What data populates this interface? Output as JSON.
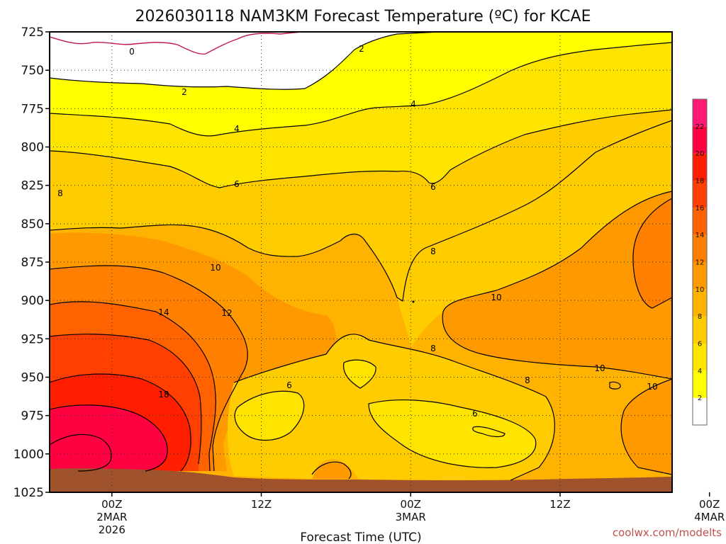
{
  "chart_data": {
    "type": "contour",
    "title": "2026030118 NAM3KM Forecast Temperature (ºC) for KCAE",
    "xlabel": "Forecast Time (UTC)",
    "ylabel": "",
    "credit": "coolwx.com/modelts",
    "y_levels": [
      "725",
      "750",
      "775",
      "800",
      "825",
      "850",
      "875",
      "900",
      "925",
      "950",
      "975",
      "1000",
      "1025"
    ],
    "y_range_hpa": [
      725,
      1025
    ],
    "x_range_forecast_hours": [
      -5,
      45
    ],
    "x_ticks": [
      {
        "hour": 0,
        "lines": [
          "00Z",
          "2MAR",
          "2026"
        ]
      },
      {
        "hour": 12,
        "lines": [
          "12Z"
        ]
      },
      {
        "hour": 24,
        "lines": [
          "00Z",
          "3MAR"
        ]
      },
      {
        "hour": 36,
        "lines": [
          "12Z"
        ]
      },
      {
        "hour": 48,
        "lines": [
          "00Z",
          "4MAR"
        ]
      }
    ],
    "colorbar": {
      "labels": [
        "2",
        "4",
        "6",
        "8",
        "10",
        "12",
        "14",
        "16",
        "18",
        "20",
        "22"
      ],
      "colors": [
        "#ffffff",
        "#ffff00",
        "#ffe400",
        "#ffcc00",
        "#ffb300",
        "#ff9900",
        "#ff7f00",
        "#ff6200",
        "#ff4000",
        "#ff1e00",
        "#ff0040",
        "#ff1a75"
      ]
    },
    "band_colors": {
      "lt0": "#ffffff",
      "b0_2": "#ffffff",
      "b2_4": "#ffff00",
      "b4_6": "#ffe400",
      "b6_8": "#ffcc00",
      "b8_10": "#ffb300",
      "b10_12": "#ff9900",
      "b12_14": "#ff7f00",
      "b14_16": "#ff6200",
      "b16_18": "#ff4000",
      "b18_20": "#ff1e00",
      "b20_22": "#ff0040",
      "ground": "#a0522d",
      "zero_line": "#c0185a"
    },
    "contour_labels": [
      "0",
      "2",
      "2",
      "4",
      "4",
      "6",
      "6",
      "6",
      "8",
      "8",
      "8",
      "8",
      "6",
      "10",
      "10",
      "10",
      "10",
      "12",
      "14",
      "18"
    ],
    "grid": "dotted"
  }
}
